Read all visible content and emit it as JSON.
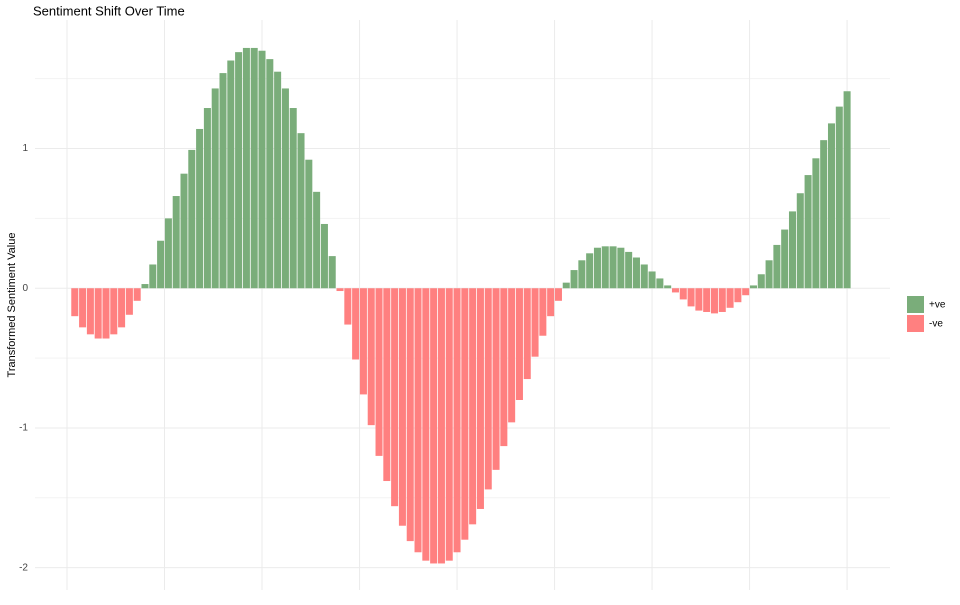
{
  "chart_data": {
    "type": "bar",
    "title": "Sentiment Shift Over Time",
    "y_label": "Transformed Sentiment Value",
    "x": [
      1,
      2,
      3,
      4,
      5,
      6,
      7,
      8,
      9,
      10,
      11,
      12,
      13,
      14,
      15,
      16,
      17,
      18,
      19,
      20,
      21,
      22,
      23,
      24,
      25,
      26,
      27,
      28,
      29,
      30,
      31,
      32,
      33,
      34,
      35,
      36,
      37,
      38,
      39,
      40,
      41,
      42,
      43,
      44,
      45,
      46,
      47,
      48,
      49,
      50,
      51,
      52,
      53,
      54,
      55,
      56,
      57,
      58,
      59,
      60,
      61,
      62,
      63,
      64,
      65,
      66,
      67,
      68,
      69,
      70,
      71,
      72,
      73,
      74,
      75,
      76,
      77,
      78,
      79,
      80,
      81,
      82,
      83,
      84,
      85,
      86,
      87,
      88,
      89,
      90,
      91,
      92,
      93,
      94,
      95,
      96,
      97,
      98,
      99,
      100
    ],
    "series": [
      {
        "name": "+ve",
        "color": "#7aad7a",
        "values": [
          null,
          null,
          null,
          null,
          null,
          null,
          null,
          null,
          null,
          0.03,
          0.17,
          0.34,
          0.5,
          0.66,
          0.82,
          0.99,
          1.14,
          1.29,
          1.43,
          1.54,
          1.63,
          1.69,
          1.72,
          1.72,
          1.7,
          1.64,
          1.55,
          1.43,
          1.29,
          1.11,
          0.92,
          0.69,
          0.46,
          0.23,
          null,
          null,
          null,
          null,
          null,
          null,
          null,
          null,
          null,
          null,
          null,
          null,
          null,
          null,
          null,
          null,
          null,
          null,
          null,
          null,
          null,
          null,
          null,
          null,
          null,
          null,
          null,
          null,
          null,
          0.04,
          0.13,
          0.2,
          0.25,
          0.29,
          0.3,
          0.3,
          0.29,
          0.26,
          0.22,
          0.17,
          0.12,
          0.07,
          0.02,
          null,
          null,
          null,
          null,
          null,
          null,
          null,
          null,
          null,
          null,
          0.02,
          0.1,
          0.2,
          0.31,
          0.42,
          0.55,
          0.68,
          0.81,
          0.93,
          1.06,
          1.18,
          1.3,
          1.41
        ]
      },
      {
        "name": "-ve",
        "color": "#ff8080",
        "values": [
          -0.2,
          -0.28,
          -0.33,
          -0.36,
          -0.36,
          -0.33,
          -0.28,
          -0.19,
          -0.09,
          null,
          null,
          null,
          null,
          null,
          null,
          null,
          null,
          null,
          null,
          null,
          null,
          null,
          null,
          null,
          null,
          null,
          null,
          null,
          null,
          null,
          null,
          null,
          null,
          null,
          -0.02,
          -0.26,
          -0.51,
          -0.76,
          -0.98,
          -1.2,
          -1.38,
          -1.56,
          -1.7,
          -1.81,
          -1.89,
          -1.95,
          -1.97,
          -1.97,
          -1.95,
          -1.89,
          -1.8,
          -1.69,
          -1.58,
          -1.44,
          -1.3,
          -1.13,
          -0.96,
          -0.8,
          -0.65,
          -0.49,
          -0.34,
          -0.2,
          -0.09,
          null,
          null,
          null,
          null,
          null,
          null,
          null,
          null,
          null,
          null,
          null,
          null,
          null,
          null,
          -0.03,
          -0.08,
          -0.13,
          -0.16,
          -0.17,
          -0.18,
          -0.17,
          -0.14,
          -0.1,
          -0.05,
          null,
          null,
          null,
          null,
          null,
          null,
          null,
          null,
          null,
          null,
          null,
          null,
          null
        ]
      }
    ],
    "xlim": [
      -4.1,
      105.5
    ],
    "xgrid": [
      0,
      12.5,
      25,
      37.5,
      50,
      62.5,
      75,
      87.5,
      100
    ],
    "ylim": [
      -2.16,
      1.92
    ],
    "yticks": [
      -2,
      -1,
      0,
      1
    ],
    "yminor": [
      -1.5,
      -0.5,
      0.5,
      1.5
    ],
    "grid": true,
    "legend": "right"
  }
}
